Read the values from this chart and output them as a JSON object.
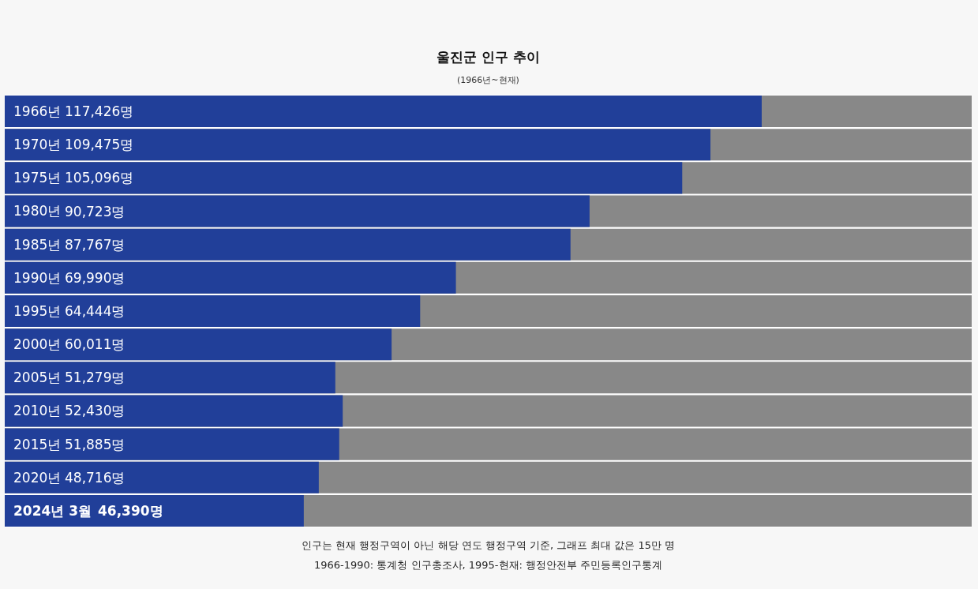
{
  "chart_data": {
    "type": "bar",
    "orientation": "horizontal",
    "title": "울진군 인구 추이",
    "subtitle": "(1966년~현재)",
    "categories": [
      "1966년",
      "1970년",
      "1975년",
      "1980년",
      "1985년",
      "1990년",
      "1995년",
      "2000년",
      "2005년",
      "2010년",
      "2015년",
      "2020년",
      "2024년 3월"
    ],
    "values": [
      117426,
      109475,
      105096,
      90723,
      87767,
      69990,
      64444,
      60011,
      51279,
      52430,
      51885,
      48716,
      46390
    ],
    "value_labels": [
      "117,426명",
      "109,475명",
      "105,096명",
      "90,723명",
      "87,767명",
      "69,990명",
      "64,444명",
      "60,011명",
      "51,279명",
      "52,430명",
      "51,885명",
      "48,716명",
      "46,390명"
    ],
    "color": "#213f99",
    "xlim": [
      0,
      150000
    ],
    "tick_labels": "y",
    "grid": false,
    "legend": false,
    "annotations": [
      "인구는 현재 행정구역이 아닌 해당 연도 행정구역 기준, 그래프 최대 값은 15만 명",
      "1966-1990: 통계청 인구총조사, 1995-현재: 행정안전부 주민등록인구통계"
    ]
  }
}
